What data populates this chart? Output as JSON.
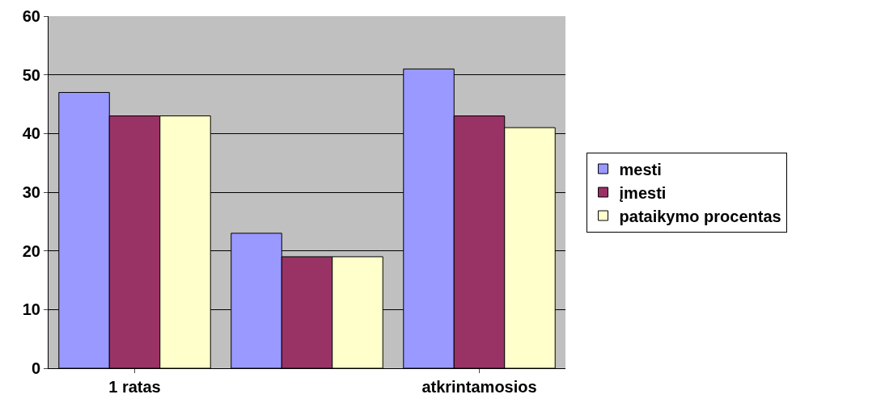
{
  "chart_data": {
    "type": "bar",
    "categories": [
      "1 ratas",
      null,
      "atkrintamosios"
    ],
    "series": [
      {
        "name": "mesti",
        "color": "#9999ff",
        "values": [
          47,
          23,
          51
        ]
      },
      {
        "name": "įmesti",
        "color": "#993366",
        "values": [
          43,
          19,
          43
        ]
      },
      {
        "name": "pataikymo procentas",
        "color": "#ffffcc",
        "values": [
          43,
          19,
          41
        ]
      }
    ],
    "ylim": [
      0,
      60
    ],
    "yticks": [
      0,
      10,
      20,
      30,
      40,
      50,
      60
    ],
    "grid": "y",
    "legend": "right"
  }
}
